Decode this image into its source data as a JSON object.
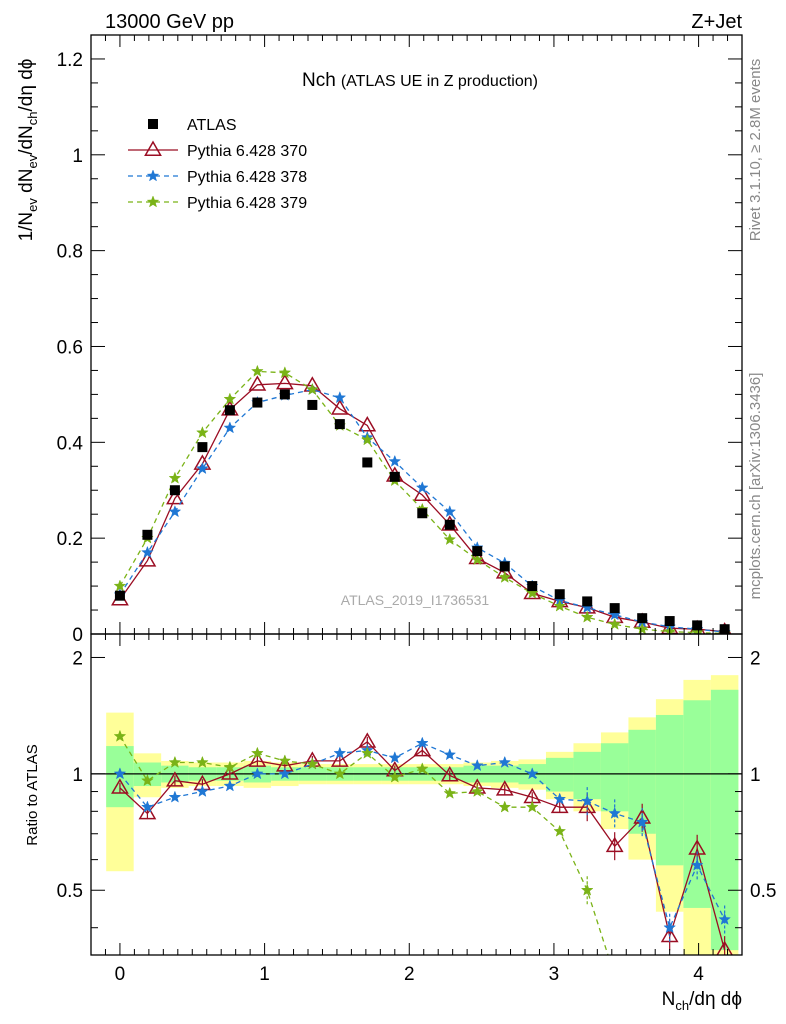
{
  "header": {
    "left": "13000 GeV pp",
    "right": "Z+Jet"
  },
  "side_labels": {
    "top": "Rivet 3.1.10, ≥ 2.8M events",
    "bottom": "mcplots.cern.ch [arXiv:1306.3436]"
  },
  "watermark": "ATLAS_2019_I1736531",
  "chart_data": {
    "type": "scatter",
    "title": "Nch",
    "subtitle": "(ATLAS UE in Z production)",
    "xlabel": "N_ch/dη dϕ",
    "ylabel": "1/N_ev dN_ev/dN_ch/dη dϕ",
    "ratio_ylabel": "Ratio to ATLAS",
    "xlim": [
      -0.2,
      4.3
    ],
    "ylim": [
      0,
      1.25
    ],
    "ratio_ylim": [
      0.34,
      2.3
    ],
    "x_ticks": [
      0,
      1,
      2,
      3,
      4
    ],
    "y_ticks": [
      0,
      0.2,
      0.4,
      0.6,
      0.8,
      1,
      1.2
    ],
    "y_tick_labels": [
      "0",
      "0.2",
      "0.4",
      "0.6",
      "0.8",
      "1",
      "1.2"
    ],
    "ratio_ticks": [
      0.5,
      1,
      2
    ],
    "ratio_tick_labels": [
      "0.5",
      "1",
      "2"
    ],
    "legend_placement": "top-left",
    "x": [
      0,
      0.19,
      0.38,
      0.57,
      0.76,
      0.95,
      1.14,
      1.33,
      1.52,
      1.71,
      1.9,
      2.09,
      2.28,
      2.47,
      2.66,
      2.85,
      3.04,
      3.23,
      3.42,
      3.61,
      3.8,
      3.99,
      4.18
    ],
    "series": [
      {
        "name": "ATLAS",
        "color": "#000000",
        "marker": "square",
        "values": [
          0.08,
          0.207,
          0.3,
          0.39,
          0.467,
          0.483,
          0.5,
          0.478,
          0.438,
          0.358,
          0.328,
          0.252,
          0.228,
          0.173,
          0.141,
          0.1,
          0.083,
          0.068,
          0.054,
          0.033,
          0.027,
          0.018,
          0.01
        ]
      },
      {
        "name": "Pythia 6.428 370",
        "color": "#9b0d23",
        "marker": "open-triangle",
        "dash": "solid",
        "values": [
          0.072,
          0.153,
          0.283,
          0.355,
          0.468,
          0.52,
          0.523,
          0.518,
          0.47,
          0.435,
          0.33,
          0.29,
          0.228,
          0.158,
          0.128,
          0.085,
          0.068,
          0.055,
          0.035,
          0.025,
          0.012,
          0.01,
          0.005
        ],
        "ratio": [
          0.92,
          0.79,
          0.96,
          0.94,
          1.0,
          1.08,
          1.05,
          1.08,
          1.08,
          1.21,
          1.02,
          1.15,
          0.99,
          0.92,
          0.91,
          0.87,
          0.82,
          0.82,
          0.65,
          0.77,
          0.38,
          0.64,
          0.35
        ]
      },
      {
        "name": "Pythia 6.428 378",
        "color": "#1f77d4",
        "marker": "star",
        "dash": "dashed",
        "values": [
          0.082,
          0.17,
          0.255,
          0.345,
          0.43,
          0.483,
          0.498,
          0.51,
          0.493,
          0.41,
          0.36,
          0.305,
          0.255,
          0.18,
          0.148,
          0.1,
          0.07,
          0.055,
          0.04,
          0.025,
          0.015,
          0.01,
          0.004
        ],
        "ratio": [
          1.0,
          0.82,
          0.87,
          0.9,
          0.93,
          1.0,
          1.0,
          1.06,
          1.13,
          1.15,
          1.1,
          1.2,
          1.12,
          1.05,
          1.07,
          1.0,
          0.86,
          0.85,
          0.79,
          0.75,
          0.4,
          0.58,
          0.42
        ]
      },
      {
        "name": "Pythia 6.428 379",
        "color": "#7ab317",
        "marker": "star",
        "dash": "dashed",
        "values": [
          0.1,
          0.2,
          0.325,
          0.42,
          0.49,
          0.548,
          0.545,
          0.51,
          0.435,
          0.405,
          0.32,
          0.26,
          0.197,
          0.155,
          0.118,
          0.085,
          0.058,
          0.035,
          0.02,
          0.01,
          0.005,
          0.003,
          0.001
        ],
        "ratio": [
          1.25,
          0.96,
          1.07,
          1.07,
          1.04,
          1.13,
          1.08,
          1.06,
          1.0,
          1.13,
          0.98,
          1.03,
          0.89,
          0.9,
          0.82,
          0.82,
          0.71,
          0.5,
          0.3,
          0.25,
          0.2,
          0.18,
          0.15
        ]
      }
    ],
    "uncertainty_bands": {
      "yellow_half_width": [
        0.44,
        0.13,
        0.08,
        0.07,
        0.07,
        0.08,
        0.07,
        0.06,
        0.06,
        0.06,
        0.06,
        0.06,
        0.06,
        0.07,
        0.08,
        0.09,
        0.14,
        0.2,
        0.28,
        0.4,
        0.56,
        0.75,
        0.8
      ],
      "green_half_width": [
        0.18,
        0.07,
        0.05,
        0.04,
        0.04,
        0.05,
        0.04,
        0.04,
        0.04,
        0.04,
        0.04,
        0.04,
        0.04,
        0.05,
        0.05,
        0.06,
        0.1,
        0.14,
        0.2,
        0.3,
        0.42,
        0.55,
        0.65
      ],
      "yellow_color": "#ffff99",
      "green_color": "#99ff99"
    }
  }
}
